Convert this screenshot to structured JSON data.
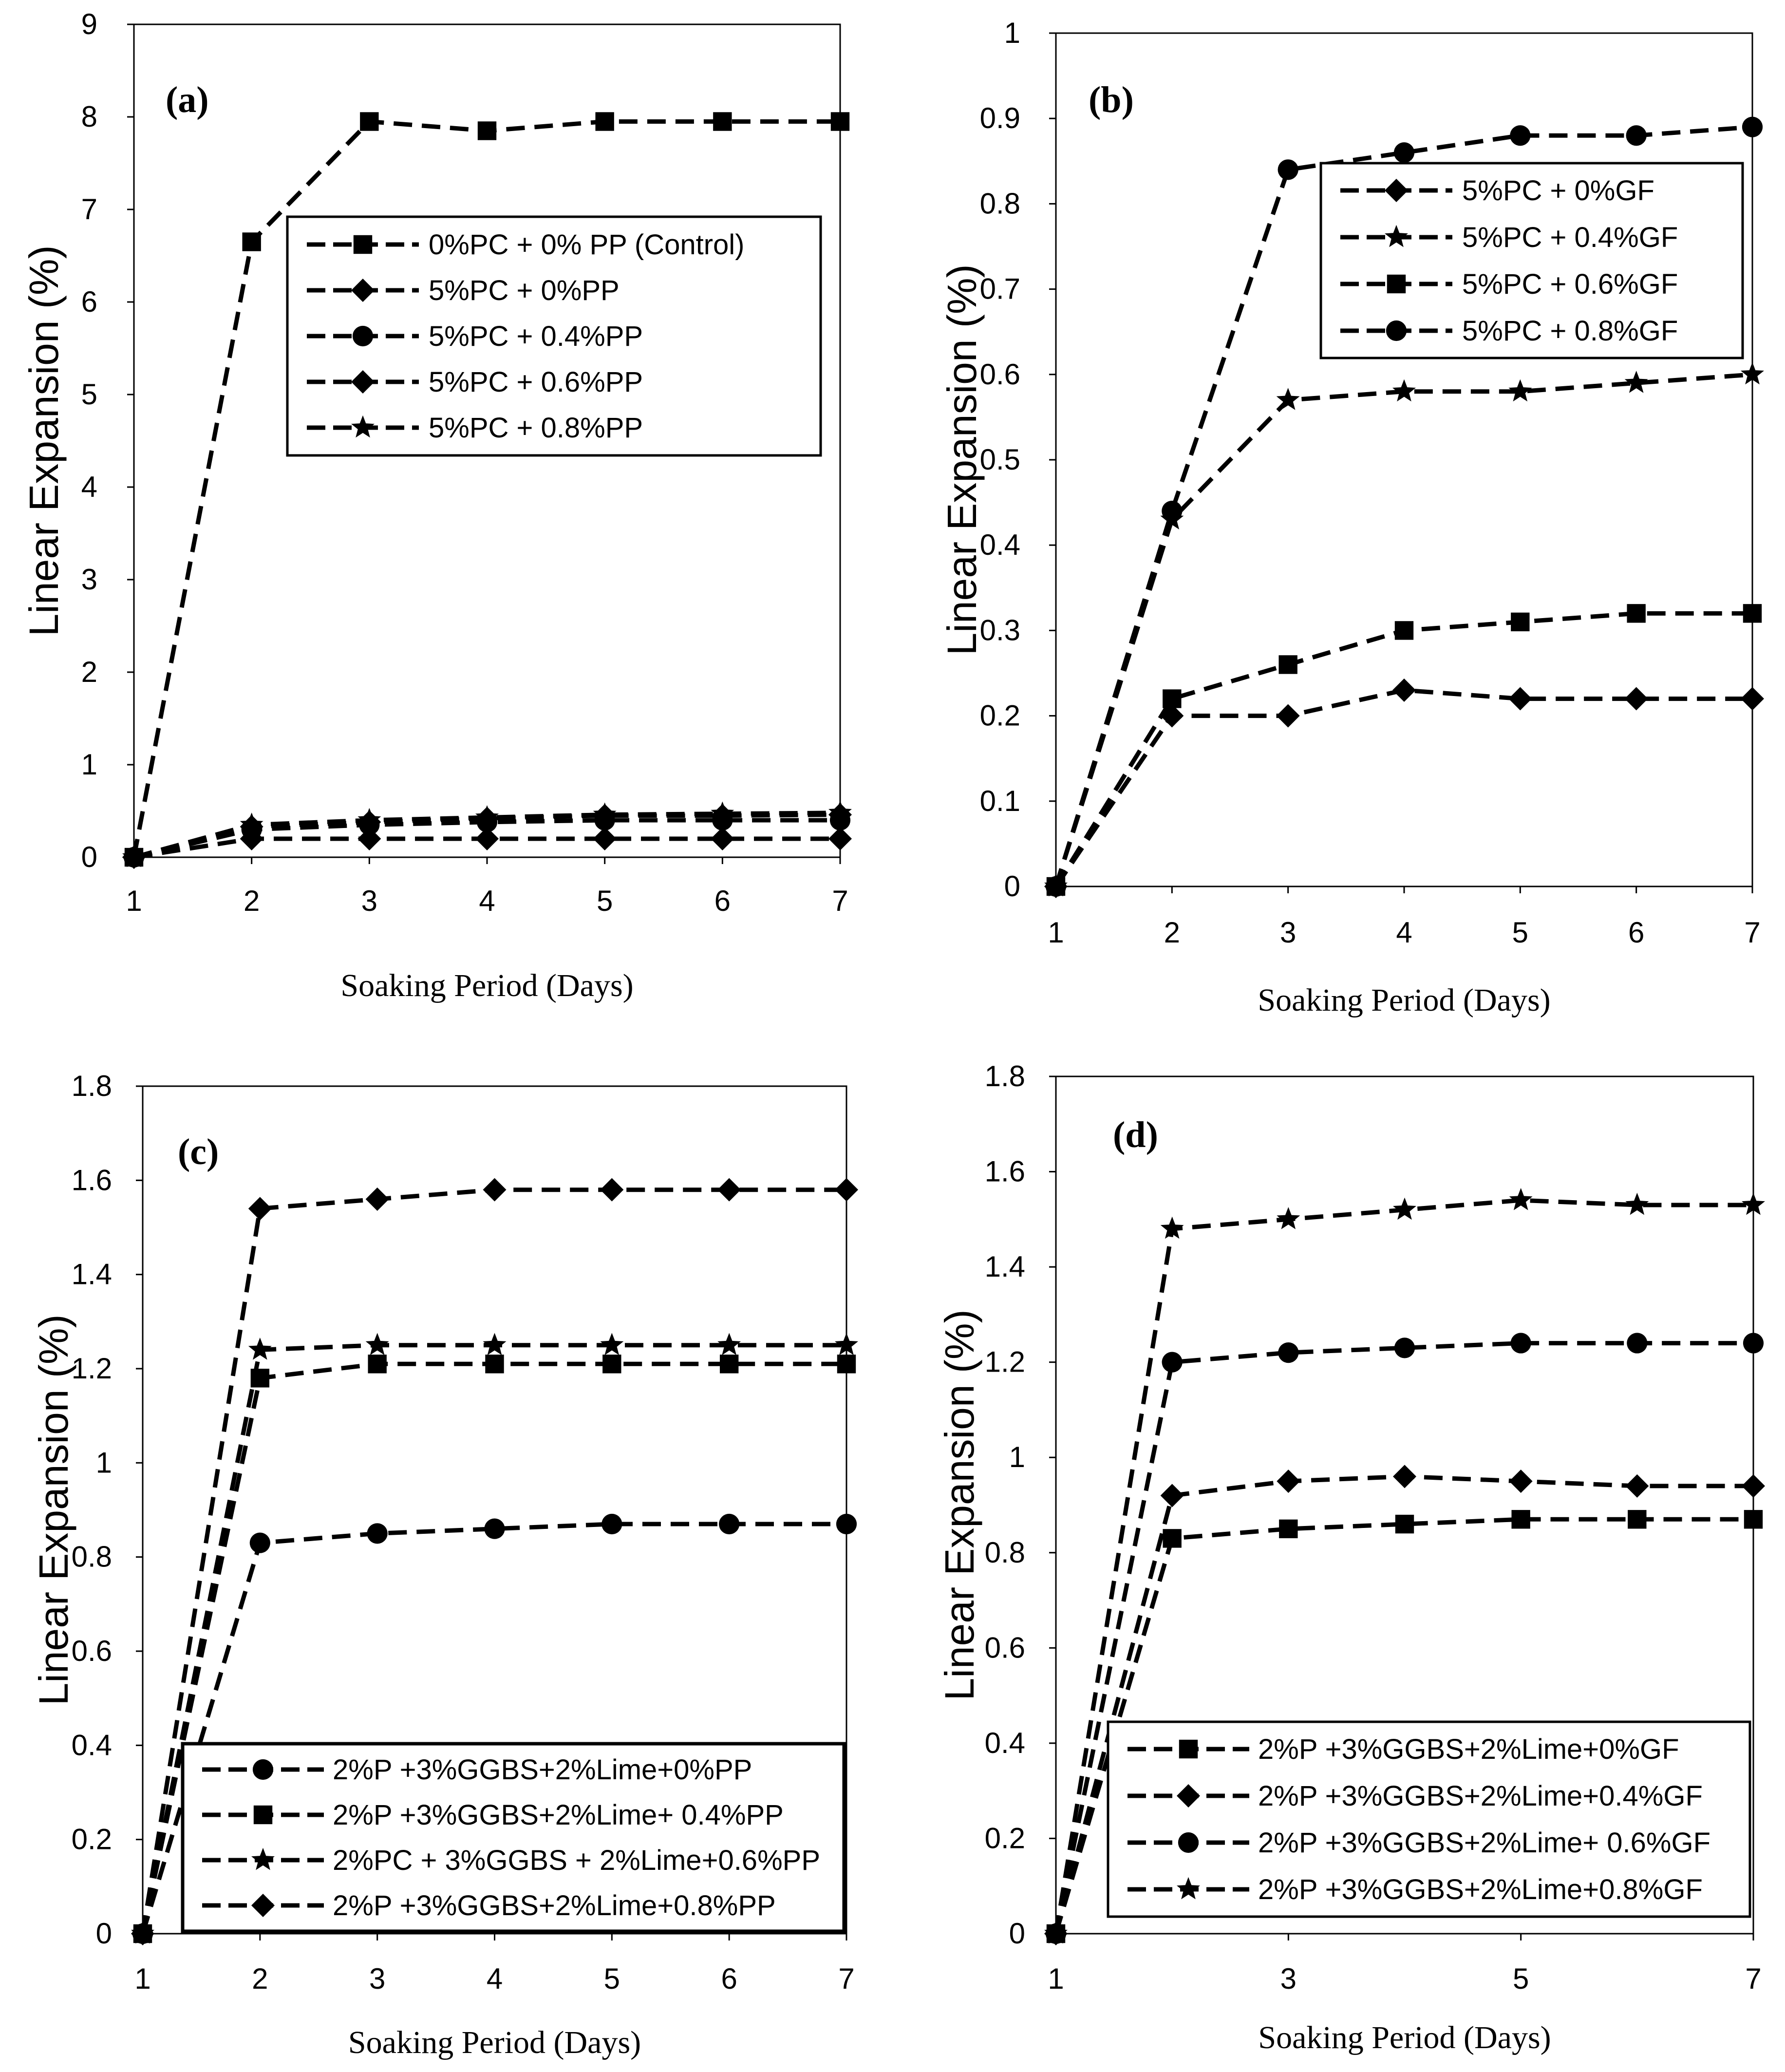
{
  "chart_data": [
    {
      "panel": "(a)",
      "type": "line",
      "xlabel": "Soaking Period (Days)",
      "ylabel": "Linear Expansion (%)",
      "x": [
        1,
        2,
        3,
        4,
        5,
        6,
        7
      ],
      "xticks": [
        1,
        2,
        3,
        4,
        5,
        6,
        7
      ],
      "xlim": [
        1,
        7
      ],
      "ylim": [
        0,
        9
      ],
      "yticks": [
        "0",
        "1",
        "2",
        "3",
        "4",
        "5",
        "6",
        "7",
        "8",
        "9"
      ],
      "legend_position": "upper-right",
      "series": [
        {
          "name": "0%PC + 0% PP (Control)",
          "marker": "square",
          "values": [
            0,
            6.65,
            7.95,
            7.85,
            7.95,
            7.95,
            7.95
          ]
        },
        {
          "name": "5%PC + 0%PP",
          "marker": "diamond",
          "values": [
            0,
            0.2,
            0.2,
            0.2,
            0.2,
            0.2,
            0.2
          ]
        },
        {
          "name": "5%PC + 0.4%PP",
          "marker": "circle",
          "values": [
            0,
            0.3,
            0.35,
            0.38,
            0.4,
            0.4,
            0.4
          ]
        },
        {
          "name": "5%PC + 0.6%PP",
          "marker": "diamond",
          "values": [
            0,
            0.33,
            0.38,
            0.42,
            0.45,
            0.45,
            0.46
          ]
        },
        {
          "name": "5%PC + 0.8%PP",
          "marker": "triangle",
          "values": [
            0,
            0.35,
            0.4,
            0.43,
            0.46,
            0.47,
            0.48
          ]
        }
      ]
    },
    {
      "panel": "(b)",
      "type": "line",
      "xlabel": "Soaking Period (Days)",
      "ylabel": "Linear Expansion (%)",
      "x": [
        1,
        2,
        3,
        4,
        5,
        6,
        7
      ],
      "xticks": [
        1,
        2,
        3,
        4,
        5,
        6,
        7
      ],
      "xlim": [
        1,
        7
      ],
      "ylim": [
        0,
        1
      ],
      "yticks": [
        "0",
        "0.1",
        "0.2",
        "0.3",
        "0.4",
        "0.5",
        "0.6",
        "0.7",
        "0.8",
        "0.9",
        "1"
      ],
      "legend_position": "upper-right",
      "series": [
        {
          "name": "5%PC + 0%GF",
          "marker": "diamond",
          "values": [
            0,
            0.2,
            0.2,
            0.23,
            0.22,
            0.22,
            0.22
          ]
        },
        {
          "name": "5%PC + 0.4%GF",
          "marker": "triangle",
          "values": [
            0,
            0.43,
            0.57,
            0.58,
            0.58,
            0.59,
            0.6
          ]
        },
        {
          "name": "5%PC + 0.6%GF",
          "marker": "square",
          "values": [
            0,
            0.22,
            0.26,
            0.3,
            0.31,
            0.32,
            0.32
          ]
        },
        {
          "name": "5%PC + 0.8%GF",
          "marker": "circle",
          "values": [
            0,
            0.44,
            0.84,
            0.86,
            0.88,
            0.88,
            0.89
          ]
        }
      ]
    },
    {
      "panel": "(c)",
      "type": "line",
      "xlabel": "Soaking Period (Days)",
      "ylabel": "Linear Expansion (%)",
      "x": [
        1,
        2,
        3,
        4,
        5,
        6,
        7
      ],
      "xticks": [
        1,
        2,
        3,
        4,
        5,
        6,
        7
      ],
      "xlim": [
        1,
        7
      ],
      "ylim": [
        0,
        1.8
      ],
      "yticks": [
        "0",
        "0.2",
        "0.4",
        "0.6",
        "0.8",
        "1",
        "1.2",
        "1.4",
        "1.6",
        "1.8"
      ],
      "legend_position": "lower-right",
      "series": [
        {
          "name": "2%P +3%GGBS+2%Lime+0%PP",
          "marker": "circle",
          "values": [
            0,
            0.83,
            0.85,
            0.86,
            0.87,
            0.87,
            0.87
          ]
        },
        {
          "name": "2%P +3%GGBS+2%Lime+ 0.4%PP",
          "marker": "square",
          "values": [
            0,
            1.18,
            1.21,
            1.21,
            1.21,
            1.21,
            1.21
          ]
        },
        {
          "name": "2%PC + 3%GGBS + 2%Lime+0.6%PP",
          "marker": "triangle",
          "values": [
            0,
            1.24,
            1.25,
            1.25,
            1.25,
            1.25,
            1.25
          ]
        },
        {
          "name": "2%P +3%GGBS+2%Lime+0.8%PP",
          "marker": "diamond",
          "values": [
            0,
            1.54,
            1.56,
            1.58,
            1.58,
            1.58,
            1.58
          ]
        }
      ]
    },
    {
      "panel": "(d)",
      "type": "line",
      "xlabel": "Soaking Period (Days)",
      "ylabel": "Linear Expansion (%)",
      "x": [
        1,
        2,
        3,
        4,
        5,
        6,
        7
      ],
      "xticks": [
        1,
        3,
        5,
        7
      ],
      "xlim": [
        1,
        7
      ],
      "ylim": [
        0,
        1.8
      ],
      "yticks": [
        "0",
        "0.2",
        "0.4",
        "0.6",
        "0.8",
        "1",
        "1.2",
        "1.4",
        "1.6",
        "1.8"
      ],
      "legend_position": "lower-right",
      "series": [
        {
          "name": "2%P +3%GGBS+2%Lime+0%GF",
          "marker": "square",
          "values": [
            0,
            0.83,
            0.85,
            0.86,
            0.87,
            0.87,
            0.87
          ]
        },
        {
          "name": "2%P +3%GGBS+2%Lime+0.4%GF",
          "marker": "diamond",
          "values": [
            0,
            0.92,
            0.95,
            0.96,
            0.95,
            0.94,
            0.94
          ]
        },
        {
          "name": "2%P +3%GGBS+2%Lime+ 0.6%GF",
          "marker": "circle",
          "values": [
            0,
            1.2,
            1.22,
            1.23,
            1.24,
            1.24,
            1.24
          ]
        },
        {
          "name": "2%P +3%GGBS+2%Lime+0.8%GF",
          "marker": "triangle",
          "values": [
            0,
            1.48,
            1.5,
            1.52,
            1.54,
            1.53,
            1.53
          ]
        }
      ]
    }
  ]
}
